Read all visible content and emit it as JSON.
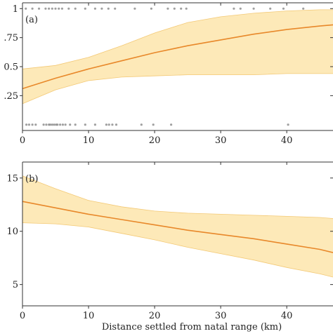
{
  "chart_data": [
    {
      "type": "line",
      "panel_label": "(a)",
      "title": "",
      "xlabel": "",
      "ylabel": "",
      "xlim": [
        0,
        47
      ],
      "ylim": [
        -0.05,
        1.05
      ],
      "xticks": [
        0,
        10,
        20,
        30,
        40
      ],
      "xtick_labels": [
        "0",
        "10",
        "20",
        "30",
        "40"
      ],
      "yticks": [
        0.25,
        0.5,
        0.75,
        1
      ],
      "ytick_labels": [
        ".25",
        "0.5",
        ".75",
        "1"
      ],
      "grid": false,
      "legend": "none",
      "colors": {
        "line": "#e8882a",
        "band": "#fde9b8",
        "band_edge": "#f3c976",
        "points": "#888888"
      },
      "series": [
        {
          "type": "line",
          "x": [
            0,
            5,
            10,
            15,
            20,
            25,
            30,
            35,
            40,
            45,
            47
          ],
          "values": [
            0.31,
            0.4,
            0.48,
            0.55,
            0.62,
            0.68,
            0.73,
            0.78,
            0.82,
            0.85,
            0.86
          ],
          "lower": [
            0.18,
            0.3,
            0.38,
            0.41,
            0.42,
            0.43,
            0.43,
            0.43,
            0.44,
            0.44,
            0.44
          ],
          "upper": [
            0.48,
            0.51,
            0.58,
            0.68,
            0.79,
            0.88,
            0.93,
            0.96,
            0.98,
            0.99,
            0.99
          ]
        },
        {
          "type": "scatter",
          "y": 1,
          "x": [
            0.5,
            1.5,
            2.5,
            3.5,
            4,
            4.5,
            5,
            5.5,
            6,
            7,
            8,
            9.5,
            11,
            12,
            13,
            14,
            17,
            19.5,
            22,
            23,
            24,
            24.8,
            32,
            33,
            35,
            37.5,
            39.5,
            42.5
          ]
        },
        {
          "type": "scatter",
          "y": 0,
          "x": [
            0.6,
            1,
            1.5,
            2,
            3.2,
            3.6,
            4,
            4.2,
            4.5,
            4.8,
            5.1,
            5.3,
            5.7,
            6.1,
            6.5,
            7.2,
            8,
            9.5,
            11,
            12.7,
            13.1,
            13.6,
            14.2,
            18,
            19.8,
            22.5,
            40.2
          ]
        }
      ]
    },
    {
      "type": "line",
      "panel_label": "(b)",
      "title": "",
      "xlabel": "Distance settled from natal range (km)",
      "ylabel": "",
      "xlim": [
        0,
        47
      ],
      "ylim": [
        3.0,
        16.5
      ],
      "xticks": [
        0,
        10,
        20,
        30,
        40
      ],
      "xtick_labels": [
        "0",
        "10",
        "20",
        "30",
        "40"
      ],
      "yticks": [
        5,
        10,
        15
      ],
      "ytick_labels": [
        "5",
        "10",
        "15"
      ],
      "grid": false,
      "legend": "none",
      "colors": {
        "line": "#e8882a",
        "band": "#fde9b8",
        "band_edge": "#f3c976"
      },
      "series": [
        {
          "type": "line",
          "x": [
            0,
            5,
            10,
            15,
            20,
            25,
            30,
            35,
            40,
            45,
            47
          ],
          "values": [
            12.8,
            12.2,
            11.6,
            11.1,
            10.6,
            10.1,
            9.7,
            9.3,
            8.8,
            8.3,
            8.0
          ],
          "lower": [
            10.8,
            10.7,
            10.4,
            9.8,
            9.2,
            8.5,
            7.9,
            7.3,
            6.6,
            6.0,
            5.7
          ],
          "upper": [
            15.2,
            14.0,
            12.9,
            12.3,
            11.9,
            11.7,
            11.6,
            11.5,
            11.4,
            11.3,
            11.2
          ]
        }
      ]
    }
  ]
}
